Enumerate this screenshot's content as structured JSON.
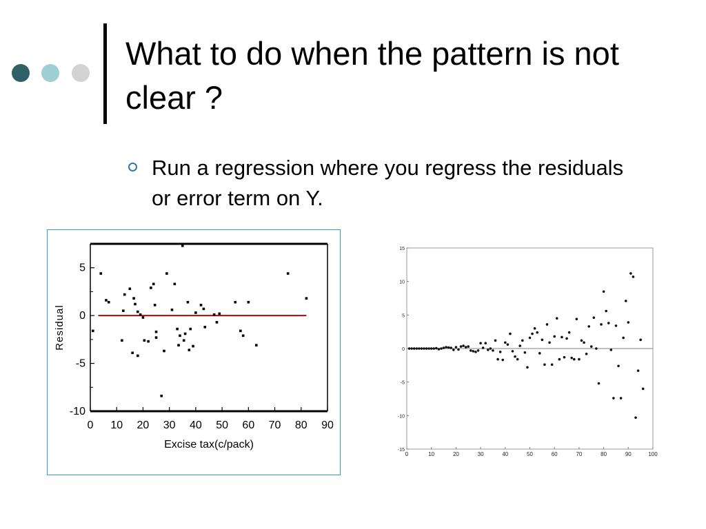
{
  "slide": {
    "title": "What to do when the pattern is not clear ?",
    "bullet": "Run a regression where you regress the residuals or error term on Y.",
    "colors": {
      "dark_dot": "#2f5f67",
      "mid_dot": "#9ecfd3",
      "light_dot": "#d3d3d3",
      "bullet": "#2c7ca7",
      "frame": "#2f9ce0",
      "reference_line": "#c00000"
    }
  },
  "chart_data": [
    {
      "type": "scatter",
      "title": "",
      "xlabel": "Excise tax(c/pack)",
      "ylabel": "Residual",
      "xlim": [
        0,
        90
      ],
      "ylim": [
        -10,
        7.5
      ],
      "xticks": [
        0,
        10,
        20,
        30,
        40,
        50,
        60,
        70,
        80,
        90
      ],
      "yticks": [
        5,
        0,
        -5,
        -10
      ],
      "ytick_labels": [
        "5",
        "0",
        "-5",
        "-10"
      ],
      "reference_line": {
        "y": 0,
        "x_from": 3,
        "x_to": 82,
        "color": "#c00000"
      },
      "points": [
        [
          1,
          -1.6
        ],
        [
          4,
          4.4
        ],
        [
          6,
          1.6
        ],
        [
          7,
          1.4
        ],
        [
          12,
          -2.6
        ],
        [
          12.5,
          0.5
        ],
        [
          13,
          2.2
        ],
        [
          15,
          2.8
        ],
        [
          16,
          -3.9
        ],
        [
          16.5,
          1.8
        ],
        [
          17,
          1.2
        ],
        [
          18,
          -4.2
        ],
        [
          18,
          0.4
        ],
        [
          19,
          0.1
        ],
        [
          20,
          -0.2
        ],
        [
          20.5,
          -2.6
        ],
        [
          22,
          -2.7
        ],
        [
          23,
          2.9
        ],
        [
          24,
          3.3
        ],
        [
          24.5,
          1.1
        ],
        [
          25,
          -1.7
        ],
        [
          25,
          -2.3
        ],
        [
          27,
          -8.4
        ],
        [
          28,
          -3.7
        ],
        [
          29,
          4.4
        ],
        [
          31,
          0.6
        ],
        [
          32,
          3.3
        ],
        [
          33,
          -1.4
        ],
        [
          33.5,
          -3.1
        ],
        [
          34,
          -2.1
        ],
        [
          35,
          7.3
        ],
        [
          35.5,
          -2.6
        ],
        [
          36,
          -1.9
        ],
        [
          37,
          1.4
        ],
        [
          37.5,
          -3.6
        ],
        [
          38,
          -1.4
        ],
        [
          39,
          -3.2
        ],
        [
          40,
          0.3
        ],
        [
          42,
          1.1
        ],
        [
          43,
          0.7
        ],
        [
          43.5,
          -1.2
        ],
        [
          47,
          0.1
        ],
        [
          48,
          -0.7
        ],
        [
          49,
          0.2
        ],
        [
          55,
          1.4
        ],
        [
          57,
          -1.6
        ],
        [
          58,
          -2.1
        ],
        [
          60,
          1.4
        ],
        [
          63,
          -3.1
        ],
        [
          75,
          4.4
        ],
        [
          82,
          1.8
        ]
      ]
    },
    {
      "type": "scatter",
      "title": "",
      "xlabel": "",
      "ylabel": "",
      "xlim": [
        0,
        100
      ],
      "ylim": [
        -15,
        15
      ],
      "xticks": [
        0,
        10,
        20,
        30,
        40,
        50,
        60,
        70,
        80,
        90,
        100
      ],
      "yticks": [
        15,
        10,
        5,
        0,
        -5,
        -10,
        -15
      ],
      "reference_line": {
        "y": 0,
        "x_from": 0,
        "x_to": 100,
        "color": "#808080"
      },
      "points": [
        [
          1,
          0
        ],
        [
          2,
          0
        ],
        [
          3,
          0
        ],
        [
          4,
          0
        ],
        [
          5,
          0
        ],
        [
          6,
          0
        ],
        [
          7,
          0
        ],
        [
          8,
          0
        ],
        [
          9,
          0
        ],
        [
          10,
          0
        ],
        [
          11,
          0
        ],
        [
          12,
          0.05
        ],
        [
          13,
          -0.1
        ],
        [
          14,
          0
        ],
        [
          15,
          0.1
        ],
        [
          16,
          0.2
        ],
        [
          17,
          0.15
        ],
        [
          18,
          0.1
        ],
        [
          19,
          -0.2
        ],
        [
          20,
          0.2
        ],
        [
          21,
          -0.15
        ],
        [
          22,
          0.3
        ],
        [
          23,
          0.4
        ],
        [
          24,
          0.2
        ],
        [
          25,
          0.3
        ],
        [
          26,
          -0.3
        ],
        [
          27,
          -0.4
        ],
        [
          28,
          -0.5
        ],
        [
          29,
          -0.3
        ],
        [
          30,
          0.8
        ],
        [
          31,
          0.1
        ],
        [
          32,
          0.8
        ],
        [
          33,
          -0.2
        ],
        [
          34,
          0
        ],
        [
          35,
          -0.3
        ],
        [
          36,
          1.2
        ],
        [
          37,
          -1.6
        ],
        [
          38,
          -0.5
        ],
        [
          39,
          -1.7
        ],
        [
          40,
          0.9
        ],
        [
          41,
          0.6
        ],
        [
          42,
          2.2
        ],
        [
          43,
          -0.4
        ],
        [
          44,
          -1.2
        ],
        [
          45,
          -1.6
        ],
        [
          46,
          0.4
        ],
        [
          47,
          1.2
        ],
        [
          48,
          -0.6
        ],
        [
          49,
          -2.8
        ],
        [
          50,
          1.6
        ],
        [
          51,
          2.2
        ],
        [
          52,
          3.0
        ],
        [
          53,
          2.4
        ],
        [
          54,
          -0.7
        ],
        [
          55,
          1.3
        ],
        [
          56,
          -2.4
        ],
        [
          57,
          3.6
        ],
        [
          58,
          0.9
        ],
        [
          59,
          -2.4
        ],
        [
          60,
          1.8
        ],
        [
          61,
          4.5
        ],
        [
          62,
          -1.6
        ],
        [
          63,
          1.7
        ],
        [
          64,
          -1.3
        ],
        [
          65,
          1.5
        ],
        [
          66,
          2.4
        ],
        [
          67,
          -1.4
        ],
        [
          68,
          -1.6
        ],
        [
          69,
          4.4
        ],
        [
          70,
          -1.6
        ],
        [
          71,
          1.2
        ],
        [
          72,
          0.9
        ],
        [
          73,
          -0.8
        ],
        [
          74,
          3.3
        ],
        [
          75,
          0.3
        ],
        [
          76,
          4.6
        ],
        [
          77,
          0
        ],
        [
          78,
          -5.2
        ],
        [
          79,
          3.6
        ],
        [
          80,
          8.5
        ],
        [
          81,
          5.6
        ],
        [
          82,
          3.8
        ],
        [
          83,
          -0.2
        ],
        [
          84,
          -7.4
        ],
        [
          85,
          3.4
        ],
        [
          86,
          -2.6
        ],
        [
          87,
          -7.4
        ],
        [
          88,
          1.6
        ],
        [
          89,
          7.1
        ],
        [
          90,
          3.9
        ],
        [
          91,
          11.2
        ],
        [
          92,
          10.7
        ],
        [
          93,
          -10.3
        ],
        [
          94,
          -3.3
        ],
        [
          95,
          1.3
        ],
        [
          96,
          -6
        ]
      ]
    }
  ]
}
